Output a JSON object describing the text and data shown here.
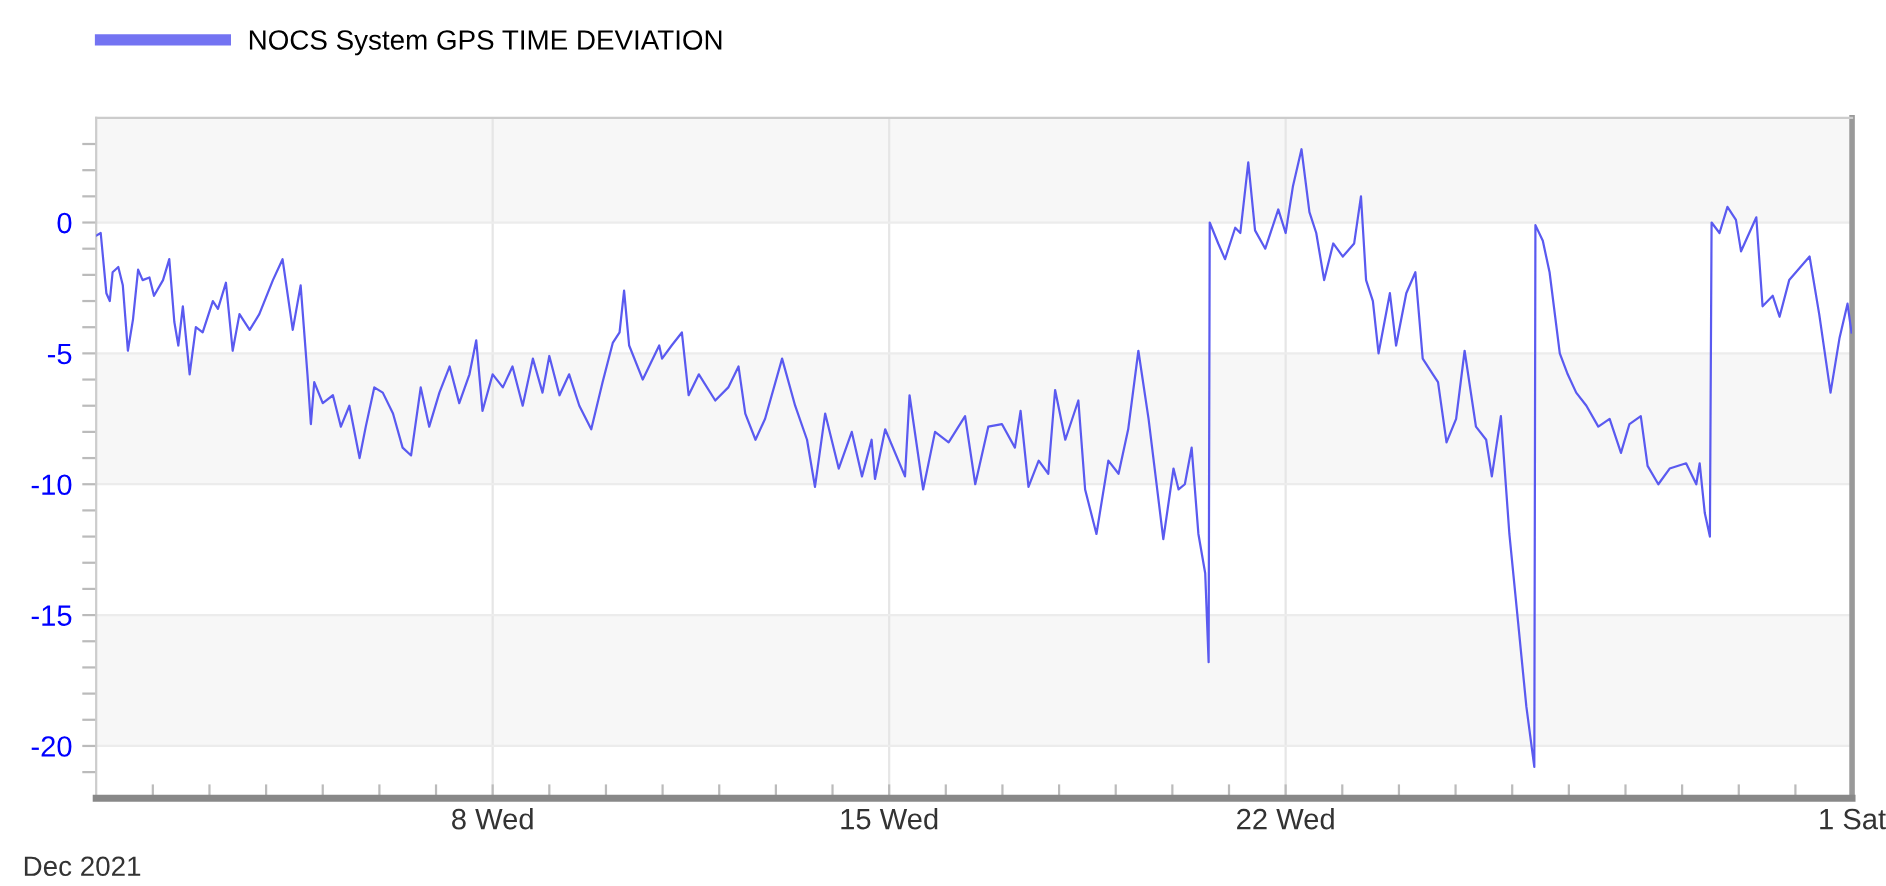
{
  "chart_data": {
    "type": "line",
    "legend": "top left",
    "grid": true,
    "marker": "none",
    "line_style": "solid",
    "annotations": [
      "Dec 2021"
    ],
    "xlim": [
      "2021-12-01",
      "2022-01-01"
    ],
    "ylim": [
      -22,
      4
    ],
    "xticks": [
      {
        "value": "2021-12-02",
        "label": null
      },
      {
        "value": "2021-12-03",
        "label": null
      },
      {
        "value": "2021-12-04",
        "label": null
      },
      {
        "value": "2021-12-05",
        "label": null
      },
      {
        "value": "2021-12-06",
        "label": null
      },
      {
        "value": "2021-12-07",
        "label": null
      },
      {
        "value": "2021-12-08",
        "label": "8 Wed"
      },
      {
        "value": "2021-12-09",
        "label": null
      },
      {
        "value": "2021-12-10",
        "label": null
      },
      {
        "value": "2021-12-11",
        "label": null
      },
      {
        "value": "2021-12-12",
        "label": null
      },
      {
        "value": "2021-12-13",
        "label": null
      },
      {
        "value": "2021-12-14",
        "label": null
      },
      {
        "value": "2021-12-15",
        "label": "15 Wed"
      },
      {
        "value": "2021-12-16",
        "label": null
      },
      {
        "value": "2021-12-17",
        "label": null
      },
      {
        "value": "2021-12-18",
        "label": null
      },
      {
        "value": "2021-12-19",
        "label": null
      },
      {
        "value": "2021-12-20",
        "label": null
      },
      {
        "value": "2021-12-21",
        "label": null
      },
      {
        "value": "2021-12-22",
        "label": "22 Wed"
      },
      {
        "value": "2021-12-23",
        "label": null
      },
      {
        "value": "2021-12-24",
        "label": null
      },
      {
        "value": "2021-12-25",
        "label": null
      },
      {
        "value": "2021-12-26",
        "label": null
      },
      {
        "value": "2021-12-27",
        "label": null
      },
      {
        "value": "2021-12-28",
        "label": null
      },
      {
        "value": "2021-12-29",
        "label": null
      },
      {
        "value": "2021-12-30",
        "label": null
      },
      {
        "value": "2021-12-31",
        "label": null
      },
      {
        "value": "2022-01-01",
        "label": "1 Sat"
      }
    ],
    "yticks": [
      {
        "value": -21,
        "label": null
      },
      -20,
      {
        "value": -19,
        "label": null
      },
      {
        "value": -18,
        "label": null
      },
      {
        "value": -17,
        "label": null
      },
      {
        "value": -16,
        "label": null
      },
      -15,
      {
        "value": -14,
        "label": null
      },
      {
        "value": -13,
        "label": null
      },
      {
        "value": -12,
        "label": null
      },
      {
        "value": -11,
        "label": null
      },
      -10,
      {
        "value": -9,
        "label": null
      },
      {
        "value": -8,
        "label": null
      },
      {
        "value": -7,
        "label": null
      },
      {
        "value": -6,
        "label": null
      },
      -5,
      {
        "value": -4,
        "label": null
      },
      {
        "value": -3,
        "label": null
      },
      {
        "value": -2,
        "label": null
      },
      {
        "value": -1,
        "label": null
      },
      0,
      {
        "value": 1,
        "label": null
      },
      {
        "value": 2,
        "label": null
      },
      {
        "value": 3,
        "label": null
      }
    ],
    "bands": [
      {
        "axis": "y",
        "from": 0,
        "to": 4,
        "color": "#f7f7f7"
      },
      {
        "axis": "y",
        "from": -10,
        "to": -5,
        "color": "#f7f7f7"
      },
      {
        "axis": "y",
        "from": -20,
        "to": -15,
        "color": "#f7f7f7"
      }
    ],
    "series": [
      {
        "name": "NOCS System GPS TIME DEVIATION",
        "color": "#5a5af0",
        "x": [
          "2021-12-01T00:00",
          "2021-12-01T01:55",
          "2021-12-01T04:19",
          "2021-12-01T05:46",
          "2021-12-01T06:58",
          "2021-12-01T09:22",
          "2021-12-01T11:17",
          "2021-12-01T13:26",
          "2021-12-01T15:36",
          "2021-12-01T17:46",
          "2021-12-01T19:41",
          "2021-12-01T22:34",
          "2021-12-02T00:29",
          "2021-12-02T04:19",
          "2021-12-02T06:58",
          "2021-12-02T09:07",
          "2021-12-02T10:48",
          "2021-12-02T12:43",
          "2021-12-02T15:36",
          "2021-12-02T18:14",
          "2021-12-02T21:07",
          "2021-12-03T01:26",
          "2021-12-03T03:36",
          "2021-12-03T06:58",
          "2021-12-03T09:50",
          "2021-12-03T12:43",
          "2021-12-03T17:02",
          "2021-12-03T21:07",
          "2021-12-04T02:53",
          "2021-12-04T06:58",
          "2021-12-04T11:17",
          "2021-12-04T14:38",
          "2021-12-04T17:31",
          "2021-12-04T18:58",
          "2021-12-04T20:24",
          "2021-12-05T00:00",
          "2021-12-05T04:19",
          "2021-12-05T07:41",
          "2021-12-05T11:17",
          "2021-12-05T15:36",
          "2021-12-05T18:14",
          "2021-12-05T21:50",
          "2021-12-06T01:26",
          "2021-12-06T05:46",
          "2021-12-06T09:50",
          "2021-12-06T13:26",
          "2021-12-06T17:31",
          "2021-12-06T21:07",
          "2021-12-07T01:26",
          "2021-12-07T05:46",
          "2021-12-07T09:50",
          "2021-12-07T14:10",
          "2021-12-07T17:02",
          "2021-12-07T19:41",
          "2021-12-08T00:00",
          "2021-12-08T04:19",
          "2021-12-08T08:24",
          "2021-12-08T12:43",
          "2021-12-08T17:02",
          "2021-12-08T21:07",
          "2021-12-09T00:00",
          "2021-12-09T04:19",
          "2021-12-09T08:24",
          "2021-12-09T12:43",
          "2021-12-09T17:46",
          "2021-12-09T22:34",
          "2021-12-10T02:53",
          "2021-12-10T05:46",
          "2021-12-10T07:41",
          "2021-12-10T09:50",
          "2021-12-10T15:36",
          "2021-12-10T22:34",
          "2021-12-10T23:46",
          "2021-12-11T03:50",
          "2021-12-11T08:10",
          "2021-12-11T11:02",
          "2021-12-11T15:22",
          "2021-12-11T22:19",
          "2021-12-12T03:50",
          "2021-12-12T08:10",
          "2021-12-12T11:02",
          "2021-12-12T15:22",
          "2021-12-12T19:26",
          "2021-12-13T02:38",
          "2021-12-13T08:10",
          "2021-12-13T13:12",
          "2021-12-13T16:34",
          "2021-12-13T20:53",
          "2021-12-14T02:38",
          "2021-12-14T08:10",
          "2021-12-14T12:29",
          "2021-12-14T16:34",
          "2021-12-14T18:00",
          "2021-12-14T22:19",
          "2021-12-15T06:43",
          "2021-12-15T08:38",
          "2021-12-15T14:24",
          "2021-12-15T19:26",
          "2021-12-16T01:12",
          "2021-12-16T08:10",
          "2021-12-16T12:29",
          "2021-12-16T18:00",
          "2021-12-16T23:46",
          "2021-12-17T05:17",
          "2021-12-17T07:41",
          "2021-12-17T11:02",
          "2021-12-17T15:22",
          "2021-12-17T19:26",
          "2021-12-17T22:19",
          "2021-12-18T02:38",
          "2021-12-18T08:10",
          "2021-12-18T11:02",
          "2021-12-18T15:50",
          "2021-12-18T20:53",
          "2021-12-19T01:12",
          "2021-12-19T05:17",
          "2021-12-19T09:36",
          "2021-12-19T13:55",
          "2021-12-19T20:10",
          "2021-12-20T00:29",
          "2021-12-20T02:38",
          "2021-12-20T05:17",
          "2021-12-20T08:10",
          "2021-12-20T11:02",
          "2021-12-20T13:55",
          "2021-12-20T15:22",
          "2021-12-20T15:50",
          "2021-12-20T19:26",
          "2021-12-20T22:19",
          "2021-12-21T02:38",
          "2021-12-21T04:48",
          "2021-12-21T08:10",
          "2021-12-21T11:02",
          "2021-12-21T15:22",
          "2021-12-21T20:53",
          "2021-12-22T00:00",
          "2021-12-22T03:07",
          "2021-12-22T06:43",
          "2021-12-22T10:05",
          "2021-12-22T12:58",
          "2021-12-22T16:19",
          "2021-12-22T20:10",
          "2021-12-23T00:14",
          "2021-12-23T05:02",
          "2021-12-23T07:55",
          "2021-12-23T10:05",
          "2021-12-23T12:58",
          "2021-12-23T15:22",
          "2021-12-23T20:10",
          "2021-12-23T22:48",
          "2021-12-24T03:07",
          "2021-12-24T06:58",
          "2021-12-24T10:05",
          "2021-12-24T14:24",
          "2021-12-24T16:34",
          "2021-12-24T20:10",
          "2021-12-25T00:14",
          "2021-12-25T03:50",
          "2021-12-25T08:38",
          "2021-12-25T12:58",
          "2021-12-25T15:22",
          "2021-12-25T19:12",
          "2021-12-25T22:48",
          "2021-12-26T02:38",
          "2021-12-26T06:00",
          "2021-12-26T09:22",
          "2021-12-26T09:50",
          "2021-12-26T12:58",
          "2021-12-26T15:50",
          "2021-12-26T20:10",
          "2021-12-26T23:31",
          "2021-12-27T03:07",
          "2021-12-27T07:26",
          "2021-12-27T12:29",
          "2021-12-27T17:17",
          "2021-12-27T22:05",
          "2021-12-28T01:41",
          "2021-12-28T06:29",
          "2021-12-28T09:22",
          "2021-12-28T13:55",
          "2021-12-28T18:43",
          "2021-12-29T01:41",
          "2021-12-29T06:00",
          "2021-12-29T07:26",
          "2021-12-29T09:36",
          "2021-12-29T11:46",
          "2021-12-29T12:29",
          "2021-12-29T15:50",
          "2021-12-29T19:12",
          "2021-12-29T22:48",
          "2021-12-30T00:58",
          "2021-12-30T07:26",
          "2021-12-30T10:05",
          "2021-12-30T14:24",
          "2021-12-30T17:17",
          "2021-12-30T21:22",
          "2021-12-31T06:00",
          "2021-12-31T10:05",
          "2021-12-31T14:53",
          "2021-12-31T18:43",
          "2021-12-31T22:05",
          "2021-12-31T23:46"
        ],
        "values": [
          -0.5,
          -0.4,
          -2.7,
          -3.0,
          -1.9,
          -1.7,
          -2.4,
          -4.9,
          -3.7,
          -1.8,
          -2.2,
          -2.1,
          -2.8,
          -2.2,
          -1.4,
          -3.8,
          -4.7,
          -3.2,
          -5.8,
          -4.0,
          -4.2,
          -3.0,
          -3.3,
          -2.3,
          -4.9,
          -3.5,
          -4.1,
          -3.5,
          -2.2,
          -1.4,
          -4.1,
          -2.4,
          -5.8,
          -7.7,
          -6.1,
          -6.9,
          -6.6,
          -7.8,
          -7.0,
          -9.0,
          -7.8,
          -6.3,
          -6.5,
          -7.3,
          -8.6,
          -8.9,
          -6.3,
          -7.8,
          -6.5,
          -5.5,
          -6.9,
          -5.8,
          -4.5,
          -7.2,
          -5.8,
          -6.3,
          -5.5,
          -7.0,
          -5.2,
          -6.5,
          -5.1,
          -6.6,
          -5.8,
          -7.0,
          -7.9,
          -6.1,
          -4.6,
          -4.2,
          -2.6,
          -4.7,
          -6.0,
          -4.7,
          -5.2,
          -4.7,
          -4.2,
          -6.6,
          -5.8,
          -6.8,
          -6.3,
          -5.5,
          -7.3,
          -8.3,
          -7.5,
          -5.2,
          -7.0,
          -8.3,
          -10.1,
          -7.3,
          -9.4,
          -8.0,
          -9.7,
          -8.3,
          -9.8,
          -7.9,
          -9.7,
          -6.6,
          -10.2,
          -8.0,
          -8.4,
          -7.4,
          -10.0,
          -7.8,
          -7.7,
          -8.6,
          -7.2,
          -10.1,
          -9.1,
          -9.6,
          -6.4,
          -8.3,
          -6.8,
          -10.2,
          -11.9,
          -9.1,
          -9.6,
          -7.9,
          -4.9,
          -7.5,
          -12.1,
          -9.4,
          -10.2,
          -10.0,
          -8.6,
          -11.9,
          -13.4,
          -16.8,
          0.0,
          -0.8,
          -1.4,
          -0.2,
          -0.4,
          2.3,
          -0.3,
          -1.0,
          0.5,
          -0.4,
          1.4,
          2.8,
          0.4,
          -0.4,
          -2.2,
          -0.8,
          -1.3,
          -0.8,
          1.0,
          -2.2,
          -3.0,
          -5.0,
          -2.7,
          -4.7,
          -2.7,
          -1.9,
          -5.2,
          -5.8,
          -6.1,
          -8.4,
          -7.5,
          -4.9,
          -7.8,
          -8.3,
          -9.7,
          -7.4,
          -11.9,
          -15.4,
          -18.5,
          -20.8,
          -0.1,
          -0.7,
          -1.9,
          -5.0,
          -5.8,
          -6.5,
          -7.0,
          -7.8,
          -7.5,
          -8.8,
          -7.7,
          -7.4,
          -9.3,
          -10.0,
          -9.4,
          -9.2,
          -10.0,
          -9.2,
          -11.1,
          -12.0,
          0.0,
          -0.4,
          0.6,
          0.1,
          -1.1,
          0.2,
          -3.2,
          -2.8,
          -3.6,
          -2.2,
          -1.3,
          -3.5,
          -6.5,
          -4.4,
          -3.1,
          -4.2
        ]
      }
    ]
  }
}
